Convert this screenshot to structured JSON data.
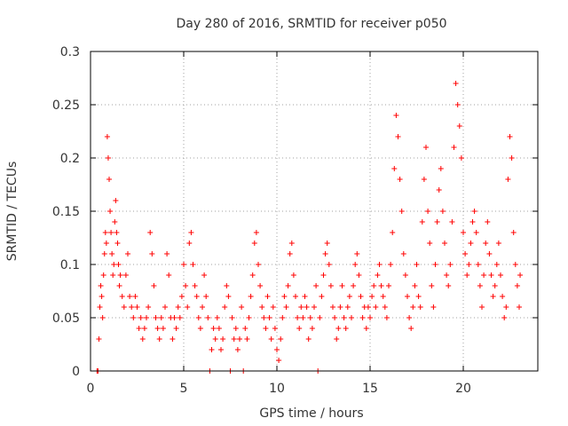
{
  "chart_data": {
    "type": "scatter",
    "title": "Day 280 of 2016, SRMTID for receiver p050",
    "xlabel": "GPS time / hours",
    "ylabel": "SRMTID / TECUs",
    "xlim": [
      0,
      24
    ],
    "ylim": [
      0,
      0.3
    ],
    "xticks": [
      0,
      5,
      10,
      15,
      20
    ],
    "yticks": [
      0,
      0.05,
      0.1,
      0.15,
      0.2,
      0.25,
      0.3
    ],
    "xtick_labels": [
      "0",
      "5",
      "10",
      "15",
      "20"
    ],
    "ytick_labels": [
      "0",
      "0.05",
      "0.1",
      "0.15",
      "0.2",
      "0.25",
      "0.3"
    ],
    "grid": true,
    "marker": "+",
    "color": "#ff0000",
    "series": [
      {
        "name": "SRMTID",
        "points": [
          [
            0.35,
            0.0
          ],
          [
            0.4,
            0.0
          ],
          [
            0.45,
            0.03
          ],
          [
            0.5,
            0.06
          ],
          [
            0.55,
            0.08
          ],
          [
            0.6,
            0.07
          ],
          [
            0.65,
            0.05
          ],
          [
            0.7,
            0.09
          ],
          [
            0.75,
            0.11
          ],
          [
            0.8,
            0.13
          ],
          [
            0.85,
            0.12
          ],
          [
            0.9,
            0.22
          ],
          [
            0.95,
            0.2
          ],
          [
            1.0,
            0.18
          ],
          [
            1.05,
            0.15
          ],
          [
            1.1,
            0.13
          ],
          [
            1.15,
            0.11
          ],
          [
            1.2,
            0.09
          ],
          [
            1.25,
            0.1
          ],
          [
            1.3,
            0.14
          ],
          [
            1.35,
            0.16
          ],
          [
            1.4,
            0.13
          ],
          [
            1.45,
            0.12
          ],
          [
            1.5,
            0.1
          ],
          [
            1.55,
            0.08
          ],
          [
            1.6,
            0.09
          ],
          [
            1.7,
            0.07
          ],
          [
            1.8,
            0.06
          ],
          [
            1.9,
            0.09
          ],
          [
            2.0,
            0.11
          ],
          [
            2.1,
            0.07
          ],
          [
            2.2,
            0.06
          ],
          [
            2.3,
            0.05
          ],
          [
            2.4,
            0.07
          ],
          [
            2.5,
            0.06
          ],
          [
            2.6,
            0.04
          ],
          [
            2.7,
            0.05
          ],
          [
            2.8,
            0.03
          ],
          [
            2.9,
            0.04
          ],
          [
            3.0,
            0.05
          ],
          [
            3.1,
            0.06
          ],
          [
            3.2,
            0.13
          ],
          [
            3.3,
            0.11
          ],
          [
            3.4,
            0.08
          ],
          [
            3.5,
            0.05
          ],
          [
            3.6,
            0.04
          ],
          [
            3.7,
            0.03
          ],
          [
            3.8,
            0.05
          ],
          [
            3.9,
            0.04
          ],
          [
            4.0,
            0.06
          ],
          [
            4.1,
            0.11
          ],
          [
            4.2,
            0.09
          ],
          [
            4.3,
            0.05
          ],
          [
            4.4,
            0.03
          ],
          [
            4.5,
            0.05
          ],
          [
            4.6,
            0.04
          ],
          [
            4.7,
            0.06
          ],
          [
            4.8,
            0.05
          ],
          [
            4.9,
            0.07
          ],
          [
            5.0,
            0.1
          ],
          [
            5.1,
            0.08
          ],
          [
            5.2,
            0.06
          ],
          [
            5.3,
            0.12
          ],
          [
            5.4,
            0.13
          ],
          [
            5.5,
            0.1
          ],
          [
            5.6,
            0.08
          ],
          [
            5.7,
            0.07
          ],
          [
            5.8,
            0.05
          ],
          [
            5.9,
            0.04
          ],
          [
            6.0,
            0.06
          ],
          [
            6.1,
            0.09
          ],
          [
            6.2,
            0.07
          ],
          [
            6.3,
            0.05
          ],
          [
            6.4,
            0.0
          ],
          [
            6.5,
            0.02
          ],
          [
            6.6,
            0.04
          ],
          [
            6.7,
            0.03
          ],
          [
            6.8,
            0.05
          ],
          [
            6.9,
            0.04
          ],
          [
            7.0,
            0.02
          ],
          [
            7.1,
            0.03
          ],
          [
            7.2,
            0.06
          ],
          [
            7.3,
            0.08
          ],
          [
            7.4,
            0.07
          ],
          [
            7.5,
            0.0
          ],
          [
            7.6,
            0.05
          ],
          [
            7.7,
            0.03
          ],
          [
            7.8,
            0.04
          ],
          [
            7.9,
            0.02
          ],
          [
            8.0,
            0.03
          ],
          [
            8.1,
            0.06
          ],
          [
            8.2,
            0.0
          ],
          [
            8.3,
            0.04
          ],
          [
            8.4,
            0.03
          ],
          [
            8.5,
            0.05
          ],
          [
            8.6,
            0.07
          ],
          [
            8.7,
            0.09
          ],
          [
            8.8,
            0.12
          ],
          [
            8.9,
            0.13
          ],
          [
            9.0,
            0.1
          ],
          [
            9.1,
            0.08
          ],
          [
            9.2,
            0.06
          ],
          [
            9.3,
            0.05
          ],
          [
            9.4,
            0.04
          ],
          [
            9.5,
            0.07
          ],
          [
            9.6,
            0.05
          ],
          [
            9.7,
            0.03
          ],
          [
            9.8,
            0.06
          ],
          [
            9.9,
            0.04
          ],
          [
            10.0,
            0.02
          ],
          [
            10.1,
            0.01
          ],
          [
            10.2,
            0.03
          ],
          [
            10.3,
            0.05
          ],
          [
            10.4,
            0.07
          ],
          [
            10.5,
            0.06
          ],
          [
            10.6,
            0.08
          ],
          [
            10.7,
            0.11
          ],
          [
            10.8,
            0.12
          ],
          [
            10.9,
            0.09
          ],
          [
            11.0,
            0.07
          ],
          [
            11.1,
            0.05
          ],
          [
            11.2,
            0.04
          ],
          [
            11.3,
            0.06
          ],
          [
            11.4,
            0.05
          ],
          [
            11.5,
            0.07
          ],
          [
            11.6,
            0.06
          ],
          [
            11.7,
            0.03
          ],
          [
            11.8,
            0.05
          ],
          [
            11.9,
            0.04
          ],
          [
            12.0,
            0.06
          ],
          [
            12.1,
            0.08
          ],
          [
            12.2,
            0.0
          ],
          [
            12.3,
            0.05
          ],
          [
            12.4,
            0.07
          ],
          [
            12.5,
            0.09
          ],
          [
            12.6,
            0.11
          ],
          [
            12.7,
            0.12
          ],
          [
            12.8,
            0.1
          ],
          [
            12.9,
            0.08
          ],
          [
            13.0,
            0.06
          ],
          [
            13.1,
            0.05
          ],
          [
            13.2,
            0.03
          ],
          [
            13.3,
            0.04
          ],
          [
            13.4,
            0.06
          ],
          [
            13.5,
            0.08
          ],
          [
            13.6,
            0.05
          ],
          [
            13.7,
            0.04
          ],
          [
            13.8,
            0.06
          ],
          [
            13.9,
            0.07
          ],
          [
            14.0,
            0.05
          ],
          [
            14.1,
            0.08
          ],
          [
            14.2,
            0.1
          ],
          [
            14.3,
            0.11
          ],
          [
            14.4,
            0.09
          ],
          [
            14.5,
            0.07
          ],
          [
            14.6,
            0.05
          ],
          [
            14.7,
            0.06
          ],
          [
            14.8,
            0.04
          ],
          [
            14.9,
            0.06
          ],
          [
            15.0,
            0.05
          ],
          [
            15.1,
            0.07
          ],
          [
            15.2,
            0.08
          ],
          [
            15.3,
            0.06
          ],
          [
            15.4,
            0.09
          ],
          [
            15.5,
            0.1
          ],
          [
            15.6,
            0.08
          ],
          [
            15.7,
            0.07
          ],
          [
            15.8,
            0.06
          ],
          [
            15.9,
            0.05
          ],
          [
            16.0,
            0.08
          ],
          [
            16.1,
            0.1
          ],
          [
            16.2,
            0.13
          ],
          [
            16.3,
            0.19
          ],
          [
            16.4,
            0.24
          ],
          [
            16.5,
            0.22
          ],
          [
            16.6,
            0.18
          ],
          [
            16.7,
            0.15
          ],
          [
            16.8,
            0.11
          ],
          [
            16.9,
            0.09
          ],
          [
            17.0,
            0.07
          ],
          [
            17.1,
            0.05
          ],
          [
            17.2,
            0.04
          ],
          [
            17.3,
            0.06
          ],
          [
            17.4,
            0.08
          ],
          [
            17.5,
            0.1
          ],
          [
            17.6,
            0.07
          ],
          [
            17.7,
            0.06
          ],
          [
            17.8,
            0.14
          ],
          [
            17.9,
            0.18
          ],
          [
            18.0,
            0.21
          ],
          [
            18.1,
            0.15
          ],
          [
            18.2,
            0.12
          ],
          [
            18.3,
            0.08
          ],
          [
            18.4,
            0.06
          ],
          [
            18.5,
            0.1
          ],
          [
            18.6,
            0.14
          ],
          [
            18.7,
            0.17
          ],
          [
            18.8,
            0.19
          ],
          [
            18.9,
            0.15
          ],
          [
            19.0,
            0.12
          ],
          [
            19.1,
            0.09
          ],
          [
            19.2,
            0.08
          ],
          [
            19.3,
            0.1
          ],
          [
            19.4,
            0.14
          ],
          [
            19.5,
            0.21
          ],
          [
            19.6,
            0.27
          ],
          [
            19.7,
            0.25
          ],
          [
            19.8,
            0.23
          ],
          [
            19.9,
            0.2
          ],
          [
            20.0,
            0.13
          ],
          [
            20.1,
            0.11
          ],
          [
            20.2,
            0.09
          ],
          [
            20.3,
            0.1
          ],
          [
            20.4,
            0.12
          ],
          [
            20.5,
            0.14
          ],
          [
            20.6,
            0.15
          ],
          [
            20.7,
            0.13
          ],
          [
            20.8,
            0.1
          ],
          [
            20.9,
            0.08
          ],
          [
            21.0,
            0.06
          ],
          [
            21.1,
            0.09
          ],
          [
            21.2,
            0.12
          ],
          [
            21.3,
            0.14
          ],
          [
            21.4,
            0.11
          ],
          [
            21.5,
            0.09
          ],
          [
            21.6,
            0.07
          ],
          [
            21.7,
            0.08
          ],
          [
            21.8,
            0.1
          ],
          [
            21.9,
            0.12
          ],
          [
            22.0,
            0.09
          ],
          [
            22.1,
            0.07
          ],
          [
            22.2,
            0.05
          ],
          [
            22.3,
            0.06
          ],
          [
            22.4,
            0.18
          ],
          [
            22.5,
            0.22
          ],
          [
            22.6,
            0.2
          ],
          [
            22.7,
            0.13
          ],
          [
            22.8,
            0.1
          ],
          [
            22.9,
            0.08
          ],
          [
            23.0,
            0.06
          ],
          [
            23.05,
            0.09
          ]
        ]
      }
    ]
  }
}
